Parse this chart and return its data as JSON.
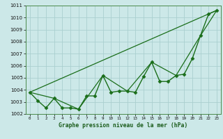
{
  "xlabel": "Graphe pression niveau de la mer (hPa)",
  "background_color": "#cce8e8",
  "grid_color": "#aacfcf",
  "line_color": "#1a6e1a",
  "xlim": [
    -0.5,
    23.5
  ],
  "ylim": [
    1002,
    1011
  ],
  "yticks": [
    1002,
    1003,
    1004,
    1005,
    1006,
    1007,
    1008,
    1009,
    1010,
    1011
  ],
  "xticks": [
    0,
    1,
    2,
    3,
    4,
    5,
    6,
    7,
    8,
    9,
    10,
    11,
    12,
    13,
    14,
    15,
    16,
    17,
    18,
    19,
    20,
    21,
    22,
    23
  ],
  "series": [
    {
      "x": [
        0,
        1,
        2,
        3,
        4,
        5,
        6,
        7,
        8,
        9,
        10,
        11,
        12,
        13,
        14,
        15,
        16,
        17,
        18,
        19,
        20,
        21,
        22,
        23
      ],
      "y": [
        1003.8,
        1003.1,
        1002.5,
        1003.3,
        1002.5,
        1002.5,
        1002.4,
        1003.5,
        1003.5,
        1005.2,
        1003.8,
        1003.9,
        1003.9,
        1003.8,
        1005.1,
        1006.3,
        1004.7,
        1004.7,
        1005.2,
        1005.3,
        1006.6,
        1008.5,
        1010.3,
        1010.6
      ],
      "marker": "D",
      "markersize": 2.5,
      "linewidth": 1.0
    },
    {
      "x": [
        0,
        3,
        6,
        9,
        12,
        15,
        18,
        21,
        23
      ],
      "y": [
        1003.8,
        1003.3,
        1002.4,
        1005.2,
        1003.9,
        1006.3,
        1005.2,
        1008.5,
        1010.6
      ],
      "marker": null,
      "markersize": 0,
      "linewidth": 0.9
    },
    {
      "x": [
        0,
        23
      ],
      "y": [
        1003.8,
        1010.6
      ],
      "marker": null,
      "markersize": 0,
      "linewidth": 0.9
    }
  ]
}
